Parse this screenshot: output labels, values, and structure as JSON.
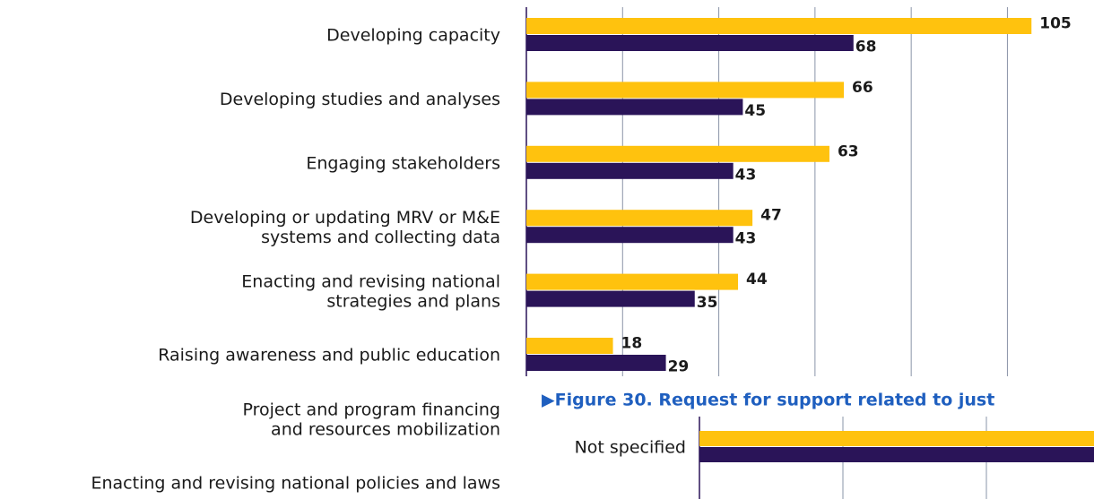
{
  "chart_data": [
    {
      "type": "barh",
      "categories": [
        "Developing capacity",
        "Developing studies and analyses",
        "Engaging stakeholders",
        "Developing or updating MRV or M&E\nsystems and collecting data",
        "Enacting and revising national\nstrategies and plans",
        "Raising awareness and public education",
        "Project and program financing\nand resources mobilization",
        "Enacting and revising national policies and laws"
      ],
      "series": [
        {
          "color": "#ffc20e",
          "values": [
            105,
            66,
            63,
            47,
            44,
            18,
            null,
            null
          ]
        },
        {
          "color": "#2a1458",
          "values": [
            68,
            45,
            43,
            43,
            35,
            29,
            null,
            null
          ]
        }
      ],
      "xlim": [
        0,
        118
      ],
      "xticks": [
        0,
        20,
        40,
        60,
        80,
        100
      ],
      "grid": true
    },
    {
      "type": "barh",
      "title": "▶Figure 30. Request for support related to just",
      "categories": [
        "Not specified"
      ],
      "series": [
        {
          "color": "#ffc20e",
          "values": [
            60
          ]
        },
        {
          "color": "#2a1458",
          "values": [
            60
          ]
        }
      ],
      "xlim": [
        0,
        55
      ],
      "xticks": [
        0,
        20,
        40
      ],
      "grid": true
    }
  ]
}
